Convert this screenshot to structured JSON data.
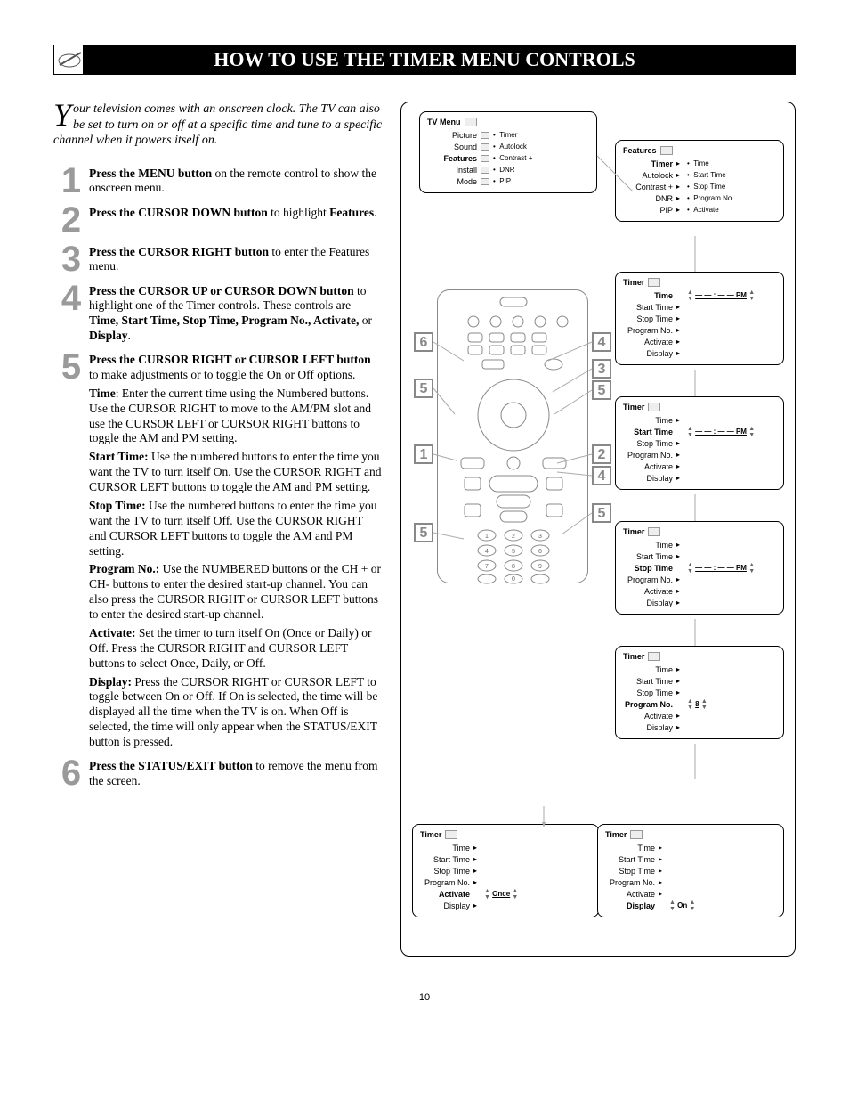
{
  "page_number": "10",
  "title_bar": "HOW TO USE THE TIMER MENU CONTROLS",
  "intro": {
    "dropcap": "Y",
    "text": "our television comes with an onscreen clock. The TV can also be set to turn on or off at a specific time and tune to a specific channel when it powers itself on."
  },
  "steps": [
    {
      "num": "1",
      "bold": "Press the MENU button",
      "rest": " on the remote control to show the onscreen menu."
    },
    {
      "num": "2",
      "bold": "Press the CURSOR DOWN  button",
      "rest": " to highlight ",
      "bold2": "Features",
      "rest2": "."
    },
    {
      "num": "3",
      "bold": "Press the CURSOR RIGHT button",
      "rest": " to enter the Features menu."
    },
    {
      "num": "4",
      "bold": "Press the CURSOR UP or CURSOR DOWN button",
      "rest": " to highlight one of the Timer controls. These controls are ",
      "bold2": "Time, Start Time, Stop Time, Program No., Activate,",
      "rest2": " or ",
      "bold3": "Display",
      "rest3": "."
    },
    {
      "num": "5",
      "bold": "Press the CURSOR RIGHT or CURSOR LEFT button",
      "rest": " to make adjustments or to toggle the On or Off options.",
      "subs": [
        {
          "b": "Time",
          "t": ": Enter the current time using the Numbered buttons. Use the CURSOR RIGHT to move to the AM/PM slot and use the CURSOR LEFT or CURSOR RIGHT buttons to toggle the AM and PM setting."
        },
        {
          "b": "Start Time:",
          "t": " Use the numbered buttons to enter the time you want the TV to turn itself On. Use the CURSOR RIGHT and CURSOR LEFT buttons to toggle the AM and PM setting."
        },
        {
          "b": "Stop Time:",
          "t": " Use the numbered buttons to enter the time you want the TV to turn itself Off. Use the CURSOR RIGHT and CURSOR LEFT buttons to toggle the AM and PM setting."
        },
        {
          "b": "Program No.:",
          "t": " Use the NUMBERED buttons or the CH + or CH- buttons to enter the desired start-up channel.  You can also press the CURSOR RIGHT or CURSOR LEFT buttons to enter the desired start-up channel."
        },
        {
          "b": "Activate:",
          "t": " Set the timer to turn itself On (Once or Daily) or Off. Press the CURSOR RIGHT and CURSOR LEFT buttons to select Once, Daily, or Off."
        },
        {
          "b": "Display:",
          "t": " Press the CURSOR RIGHT or CURSOR LEFT to toggle between On or Off. If On is selected, the time will be displayed all the time when the TV is on. When Off is selected, the time will only appear when the STATUS/EXIT button is pressed."
        }
      ]
    },
    {
      "num": "6",
      "bold": "Press the STATUS/EXIT button",
      "rest": " to remove the menu from the screen."
    }
  ],
  "tv_menu": {
    "header": "TV Menu",
    "left": [
      "Picture",
      "Sound",
      "Features",
      "Install",
      "Mode"
    ],
    "right_bullets": [
      "Timer",
      "Autolock",
      "Contrast +",
      "DNR",
      "PIP"
    ],
    "selected": "Features"
  },
  "features_menu": {
    "header": "Features",
    "rows": [
      {
        "l": "Timer",
        "sel": true,
        "v": ""
      },
      {
        "l": "Autolock",
        "v": ""
      },
      {
        "l": "Contrast +",
        "v": ""
      },
      {
        "l": "DNR",
        "v": ""
      },
      {
        "l": "PIP",
        "v": ""
      }
    ],
    "side_bullets": [
      "Time",
      "Start Time",
      "Stop Time",
      "Program No.",
      "Activate"
    ]
  },
  "timer_panels": [
    {
      "header": "Timer",
      "rows": [
        {
          "l": "Time",
          "sel": true,
          "v": "— — : — —  PM",
          "updown": true
        },
        {
          "l": "Start Time",
          "v": ""
        },
        {
          "l": "Stop Time",
          "v": ""
        },
        {
          "l": "Program No.",
          "v": ""
        },
        {
          "l": "Activate",
          "v": ""
        },
        {
          "l": "Display",
          "v": ""
        }
      ]
    },
    {
      "header": "Timer",
      "rows": [
        {
          "l": "Time",
          "v": ""
        },
        {
          "l": "Start Time",
          "sel": true,
          "v": "— — : — —  PM",
          "updown": true
        },
        {
          "l": "Stop Time",
          "v": ""
        },
        {
          "l": "Program No.",
          "v": ""
        },
        {
          "l": "Activate",
          "v": ""
        },
        {
          "l": "Display",
          "v": ""
        }
      ]
    },
    {
      "header": "Timer",
      "rows": [
        {
          "l": "Time",
          "v": ""
        },
        {
          "l": "Start Time",
          "v": ""
        },
        {
          "l": "Stop Time",
          "sel": true,
          "v": "— — : — —  PM",
          "updown": true
        },
        {
          "l": "Program No.",
          "v": ""
        },
        {
          "l": "Activate",
          "v": ""
        },
        {
          "l": "Display",
          "v": ""
        }
      ]
    },
    {
      "header": "Timer",
      "rows": [
        {
          "l": "Time",
          "v": ""
        },
        {
          "l": "Start Time",
          "v": ""
        },
        {
          "l": "Stop Time",
          "v": ""
        },
        {
          "l": "Program No.",
          "sel": true,
          "v": "8",
          "updown": true
        },
        {
          "l": "Activate",
          "v": ""
        },
        {
          "l": "Display",
          "v": ""
        }
      ]
    }
  ],
  "bottom_panels": [
    {
      "header": "Timer",
      "rows": [
        {
          "l": "Time",
          "v": ""
        },
        {
          "l": "Start Time",
          "v": ""
        },
        {
          "l": "Stop Time",
          "v": ""
        },
        {
          "l": "Program No.",
          "v": ""
        },
        {
          "l": "Activate",
          "sel": true,
          "v": "Once",
          "updown": true
        },
        {
          "l": "Display",
          "v": ""
        }
      ]
    },
    {
      "header": "Timer",
      "rows": [
        {
          "l": "Time",
          "v": ""
        },
        {
          "l": "Start Time",
          "v": ""
        },
        {
          "l": "Stop Time",
          "v": ""
        },
        {
          "l": "Program No.",
          "v": ""
        },
        {
          "l": "Activate",
          "v": ""
        },
        {
          "l": "Display",
          "sel": true,
          "v": "On",
          "updown": true
        }
      ]
    }
  ],
  "callouts": {
    "c6": "6",
    "c4": "4",
    "c3": "3",
    "c5a": "5",
    "c5b": "5",
    "c1": "1",
    "c2": "2",
    "c4b": "4",
    "c5c": "5",
    "c5d": "5"
  }
}
